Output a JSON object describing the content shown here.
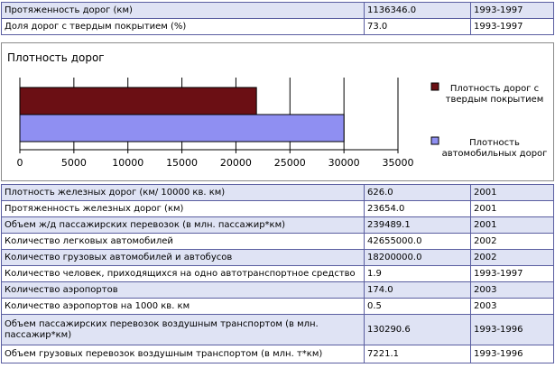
{
  "top_rows": [
    {
      "label": "Протяженность дорог (км)",
      "value": "1136346.0",
      "year": "1993-1997"
    },
    {
      "label": "Доля дорог с твердым покрытием (%)",
      "value": "73.0",
      "year": "1993-1997"
    }
  ],
  "chart_data": {
    "type": "bar",
    "orientation": "horizontal",
    "title": "Плотность дорог",
    "series": [
      {
        "name": "Плотность дорог с твердым покрытием",
        "values": [
          21900
        ],
        "color": "#6b0f14"
      },
      {
        "name": "Плотность автомобильных дорог",
        "values": [
          30000
        ],
        "color": "#8f8ff2"
      }
    ],
    "legend_lines": [
      [
        "Плотность дорог с",
        "твердым покрытием"
      ],
      [
        "Плотность",
        "автомобильных дорог"
      ]
    ],
    "xlim": [
      0,
      35000
    ],
    "ticks": [
      "0",
      "5000",
      "10000",
      "15000",
      "20000",
      "25000",
      "30000",
      "35000"
    ],
    "grid": true,
    "legend_position": "right"
  },
  "bottom_rows": [
    {
      "label": "Плотность железных дорог (км/ 10000 кв. км)",
      "value": "626.0",
      "year": "2001"
    },
    {
      "label": "Протяженность железных дорог (км)",
      "value": "23654.0",
      "year": "2001"
    },
    {
      "label": "Объем ж/д пассажирских перевозок (в млн. пассажир*км)",
      "value": "239489.1",
      "year": "2001"
    },
    {
      "label": "Количество легковых автомобилей",
      "value": "42655000.0",
      "year": "2002"
    },
    {
      "label": "Количество грузовых автомобилей и автобусов",
      "value": "18200000.0",
      "year": "2002"
    },
    {
      "label": "Количество человек, приходящихся на одно автотранспортное средство",
      "value": "1.9",
      "year": "1993-1997"
    },
    {
      "label": "Количество аэропортов",
      "value": "174.0",
      "year": "2003"
    },
    {
      "label": "Количество аэропортов на 1000 кв. км",
      "value": "0.5",
      "year": "2003"
    },
    {
      "label": "Объем пассажирских перевозок воздушным транспортом (в млн. пассажир*км)",
      "value": "130290.6",
      "year": "1993-1996"
    },
    {
      "label": "Объем грузовых перевозок воздушным транспортом (в млн. т*км)",
      "value": "7221.1",
      "year": "1993-1996"
    }
  ]
}
